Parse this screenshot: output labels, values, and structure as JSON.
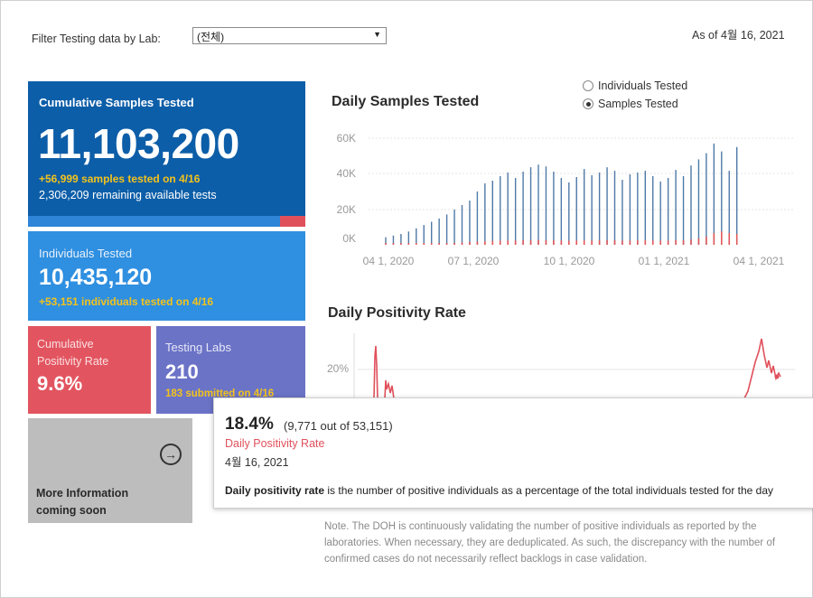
{
  "filter": {
    "label": "Filter Testing data by Lab:",
    "value": "(전체)"
  },
  "as_of": "As of 4월 16, 2021",
  "cards": {
    "cumulative": {
      "title": "Cumulative Samples Tested",
      "value": "11,103,200",
      "delta": "+56,999 samples tested on 4/16",
      "remaining": "2,306,209 remaining available tests"
    },
    "individuals": {
      "title": "Individuals Tested",
      "value": "10,435,120",
      "delta": "+53,151  individuals  tested on 4/16"
    },
    "positivity": {
      "title": "Cumulative Positivity Rate",
      "value": "9.6%"
    },
    "labs": {
      "title": "Testing Labs",
      "value": "210",
      "submitted": "183 submitted on 4/16"
    },
    "more": {
      "line1": "More Information",
      "line2": "coming soon"
    }
  },
  "daily_samples": {
    "title": "Daily Samples Tested",
    "radio": {
      "individuals": "Individuals Tested",
      "samples": "Samples Tested",
      "selected": "samples"
    }
  },
  "daily_positivity": {
    "title": "Daily Positivity Rate"
  },
  "tooltip": {
    "value": "18.4%",
    "detail": "(9,771 out of  53,151)",
    "label": "Daily Positivity Rate",
    "date": "4월 16, 2021",
    "desc_bold": "Daily positivity rate",
    "desc_rest": " is the number of positive individuals as a percentage of the total individuals tested for the day"
  },
  "note": "Note. The DOH is continuously validating the number of positive individuals as reported by the laboratories. When necessary, they are deduplicated. As such, the discrepancy with the number of confirmed cases do not necessarily reflect backlogs in case validation.",
  "colors": {
    "bar_blue": "#4e79a7",
    "bar_red": "#e15759",
    "pos_line": "#e0505b"
  },
  "chart_data": [
    {
      "type": "bar",
      "title": "Daily Samples Tested",
      "yticks": [
        "0K",
        "20K",
        "40K",
        "60K"
      ],
      "ylim": [
        0,
        60000
      ],
      "xticks": [
        "04 1, 2020",
        "07 1, 2020",
        "10 1, 2020",
        "01 1, 2021",
        "04 1, 2021"
      ],
      "series": [
        {
          "name": "Samples Tested",
          "values": [
            3000,
            4000,
            5000,
            6500,
            8500,
            10500,
            12500,
            14500,
            17000,
            20000,
            22500,
            25000,
            30000,
            34500,
            36000,
            38500,
            40500,
            37500,
            41000,
            43500,
            45000,
            44000,
            41000,
            37500,
            35000,
            38000,
            42500,
            39000,
            40500,
            43500,
            41500,
            36500,
            39500,
            40500,
            41500,
            38500,
            35500,
            37500,
            42000,
            38500,
            44500,
            48000,
            51500,
            57000,
            52500,
            41500,
            55000
          ]
        },
        {
          "name": "Positive",
          "values": [
            200,
            300,
            400,
            500,
            600,
            700,
            800,
            900,
            1000,
            1100,
            1300,
            1500,
            1800,
            2000,
            2200,
            2300,
            2400,
            2400,
            2500,
            2600,
            2700,
            2600,
            2500,
            2400,
            2300,
            2400,
            2500,
            2400,
            2500,
            2600,
            2500,
            2300,
            2400,
            2500,
            2600,
            2400,
            2300,
            2400,
            2600,
            2500,
            3000,
            3500,
            4500,
            6500,
            7500,
            6500,
            6000
          ]
        }
      ]
    },
    {
      "type": "line",
      "title": "Daily Positivity Rate",
      "yticks": [
        "20%"
      ],
      "ylim": [
        0,
        30
      ],
      "series": [
        {
          "name": "Daily Positivity Rate",
          "values": [
            null,
            null,
            null,
            null,
            null,
            null,
            null,
            null,
            null,
            null,
            null,
            null,
            null,
            null,
            null,
            null,
            null,
            null,
            null,
            null,
            null,
            null,
            null,
            null,
            null,
            null,
            null,
            null,
            null,
            null,
            null,
            null,
            null,
            null,
            null,
            null,
            null,
            null,
            null,
            null,
            null,
            null,
            null,
            null,
            null,
            null,
            null,
            null,
            null,
            null,
            null,
            null,
            null,
            null,
            null,
            null,
            null,
            null,
            null,
            null,
            null,
            null,
            null,
            null,
            null,
            null,
            null,
            null,
            null,
            null,
            null,
            null,
            null,
            null,
            null,
            null,
            null,
            null,
            null,
            null,
            null,
            null,
            null,
            null,
            null,
            null,
            null,
            null,
            null,
            null,
            null,
            null,
            null,
            null,
            null,
            null,
            null,
            null,
            null,
            null,
            null,
            null,
            null,
            null,
            null,
            null,
            null,
            null,
            null,
            null,
            null,
            null,
            null,
            null,
            null,
            null,
            null,
            null,
            null,
            null
          ]
        }
      ]
    }
  ]
}
